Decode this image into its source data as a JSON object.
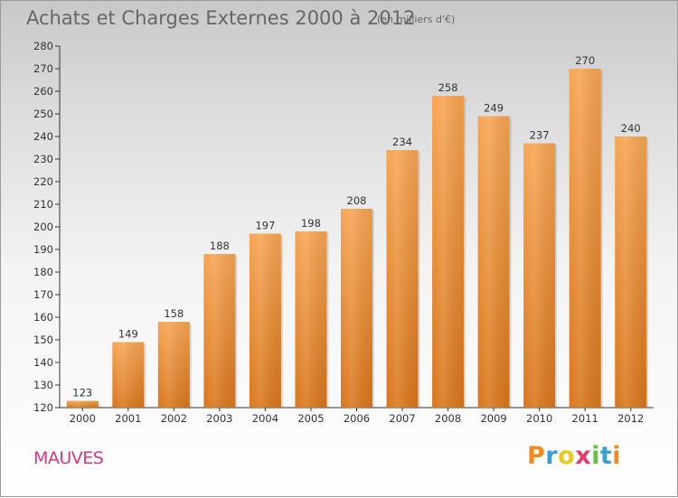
{
  "header": {
    "title": "Achats et Charges Externes 2000 à 2012",
    "subtitle": "(en milliers d'€)"
  },
  "footer": {
    "commune": "MAUVES",
    "logo_text": "Proxiti",
    "logo_colors": [
      "#f18a1c",
      "#3aa1d6",
      "#e8c81a",
      "#e23a6a",
      "#6cc04a",
      "#3aa1d6",
      "#f18a1c"
    ]
  },
  "chart_data": {
    "type": "bar",
    "title": "Achats et Charges Externes 2000 à 2012",
    "subtitle": "(en milliers d'€)",
    "categories": [
      "2000",
      "2001",
      "2002",
      "2003",
      "2004",
      "2005",
      "2006",
      "2007",
      "2008",
      "2009",
      "2010",
      "2011",
      "2012"
    ],
    "values": [
      123,
      149,
      158,
      188,
      197,
      198,
      208,
      234,
      258,
      249,
      237,
      270,
      240
    ],
    "ylim": [
      120,
      280
    ],
    "ytick_step": 10,
    "grid": false,
    "bar_color_top": "#f7a552",
    "bar_color_bottom": "#d9761c"
  }
}
